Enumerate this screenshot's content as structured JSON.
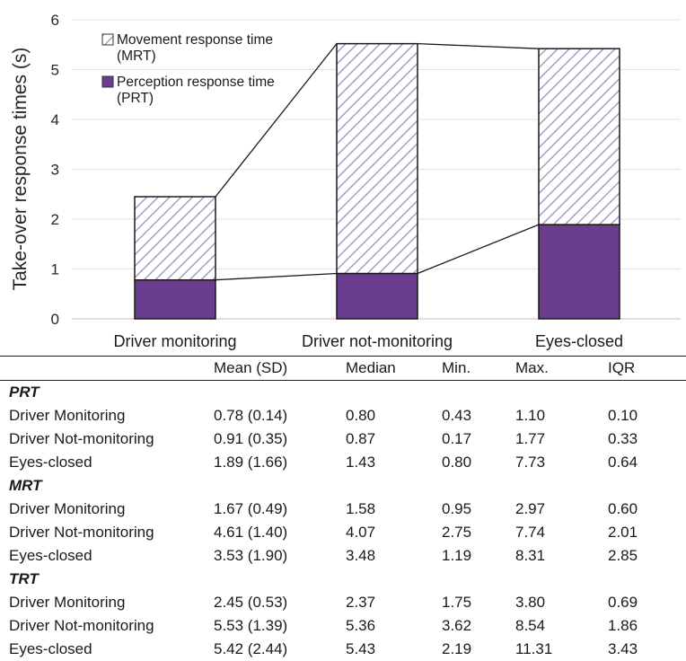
{
  "chart_data": {
    "type": "bar",
    "stacked": true,
    "categories": [
      "Driver monitoring",
      "Driver not-monitoring",
      "Eyes-closed"
    ],
    "series": [
      {
        "name": "Perception response time (PRT)",
        "values": [
          0.78,
          0.91,
          1.89
        ],
        "color": "#6a3d8f",
        "pattern": "solid"
      },
      {
        "name": "Movement response time (MRT)",
        "values": [
          1.67,
          4.61,
          3.53
        ],
        "color": "#a99cc8",
        "pattern": "diagonal-hatch"
      }
    ],
    "legend": {
      "position": "top-left",
      "entries": [
        {
          "line1": "Movement response time",
          "line2": "(MRT)"
        },
        {
          "line1": "Perception response time",
          "line2": "(PRT)"
        }
      ]
    },
    "connecting_lines": true,
    "ylabel": "Take-over response times (s)",
    "xlabel": "",
    "ylim": [
      0,
      6
    ],
    "yticks": [
      0,
      1,
      2,
      3,
      4,
      5,
      6
    ],
    "grid": "horizontal"
  },
  "table": {
    "headers": [
      "",
      "Mean (SD)",
      "Median",
      "Min.",
      "Max.",
      "IQR"
    ],
    "sections": [
      {
        "title": "PRT",
        "rows": [
          [
            "Driver Monitoring",
            "0.78 (0.14)",
            "0.80",
            "0.43",
            "1.10",
            "0.10"
          ],
          [
            "Driver Not-monitoring",
            "0.91 (0.35)",
            "0.87",
            "0.17",
            "1.77",
            "0.33"
          ],
          [
            "Eyes-closed",
            "1.89 (1.66)",
            "1.43",
            "0.80",
            "7.73",
            "0.64"
          ]
        ]
      },
      {
        "title": "MRT",
        "rows": [
          [
            "Driver Monitoring",
            "1.67 (0.49)",
            "1.58",
            "0.95",
            "2.97",
            "0.60"
          ],
          [
            "Driver Not-monitoring",
            "4.61 (1.40)",
            "4.07",
            "2.75",
            "7.74",
            "2.01"
          ],
          [
            "Eyes-closed",
            "3.53 (1.90)",
            "3.48",
            "1.19",
            "8.31",
            "2.85"
          ]
        ]
      },
      {
        "title": "TRT",
        "rows": [
          [
            "Driver Monitoring",
            "2.45 (0.53)",
            "2.37",
            "1.75",
            "3.80",
            "0.69"
          ],
          [
            "Driver Not-monitoring",
            "5.53 (1.39)",
            "5.36",
            "3.62",
            "8.54",
            "1.86"
          ],
          [
            "Eyes-closed",
            "5.42 (2.44)",
            "5.43",
            "2.19",
            "11.31",
            "3.43"
          ]
        ]
      }
    ]
  }
}
